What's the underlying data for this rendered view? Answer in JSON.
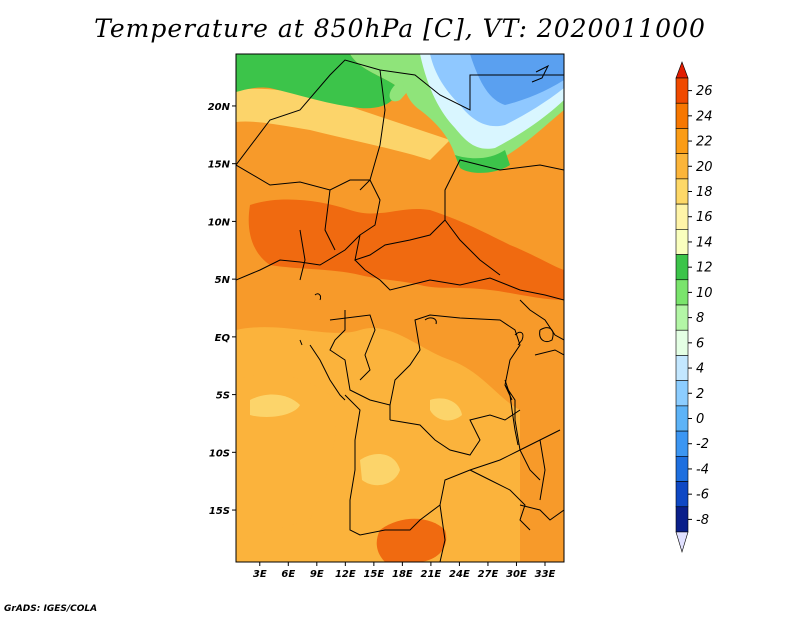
{
  "title": "Temperature at 850hPa [C], VT: 2020011000",
  "credit": "GrADS: IGES/COLA",
  "map": {
    "lat_labels": [
      "20N",
      "15N",
      "10N",
      "5N",
      "EQ",
      "5S",
      "10S",
      "15S"
    ],
    "lat_values": [
      20,
      15,
      10,
      5,
      0,
      -5,
      -10,
      -15
    ],
    "lon_labels": [
      "3E",
      "6E",
      "9E",
      "12E",
      "15E",
      "18E",
      "21E",
      "24E",
      "27E",
      "30E",
      "33E"
    ],
    "lon_values": [
      3,
      6,
      9,
      12,
      15,
      18,
      21,
      24,
      27,
      30,
      33
    ],
    "lat_range": [
      -19.5,
      24.5
    ],
    "lon_range": [
      0.5,
      35.0
    ]
  },
  "colorbar": {
    "labels": [
      "26",
      "24",
      "22",
      "20",
      "18",
      "16",
      "14",
      "12",
      "10",
      "8",
      "6",
      "4",
      "2",
      "0",
      "-2",
      "-4",
      "-6",
      "-8"
    ],
    "colors": [
      "#e11c00",
      "#f04a00",
      "#f77700",
      "#fb9c16",
      "#fcb53a",
      "#fed867",
      "#fff4a8",
      "#faffbe",
      "#3cc44a",
      "#7ae46c",
      "#b3f6a6",
      "#e4ffe4",
      "#c3e7ff",
      "#8ccdff",
      "#5db3f7",
      "#3c96f2",
      "#1e6fdf",
      "#0f48c4",
      "#0a1f8a",
      "#e0e0ff"
    ]
  },
  "palette": {
    "orange_deep": "#f06a10",
    "orange": "#f79a2a",
    "orange_light": "#fbb33c",
    "yellow": "#fcd46a",
    "green": "#3cc44a",
    "green_light": "#8fe47a",
    "cyan_light": "#d9f6ff",
    "blue_light": "#8fc8ff",
    "blue": "#5aa0f0",
    "border": "#000000"
  }
}
